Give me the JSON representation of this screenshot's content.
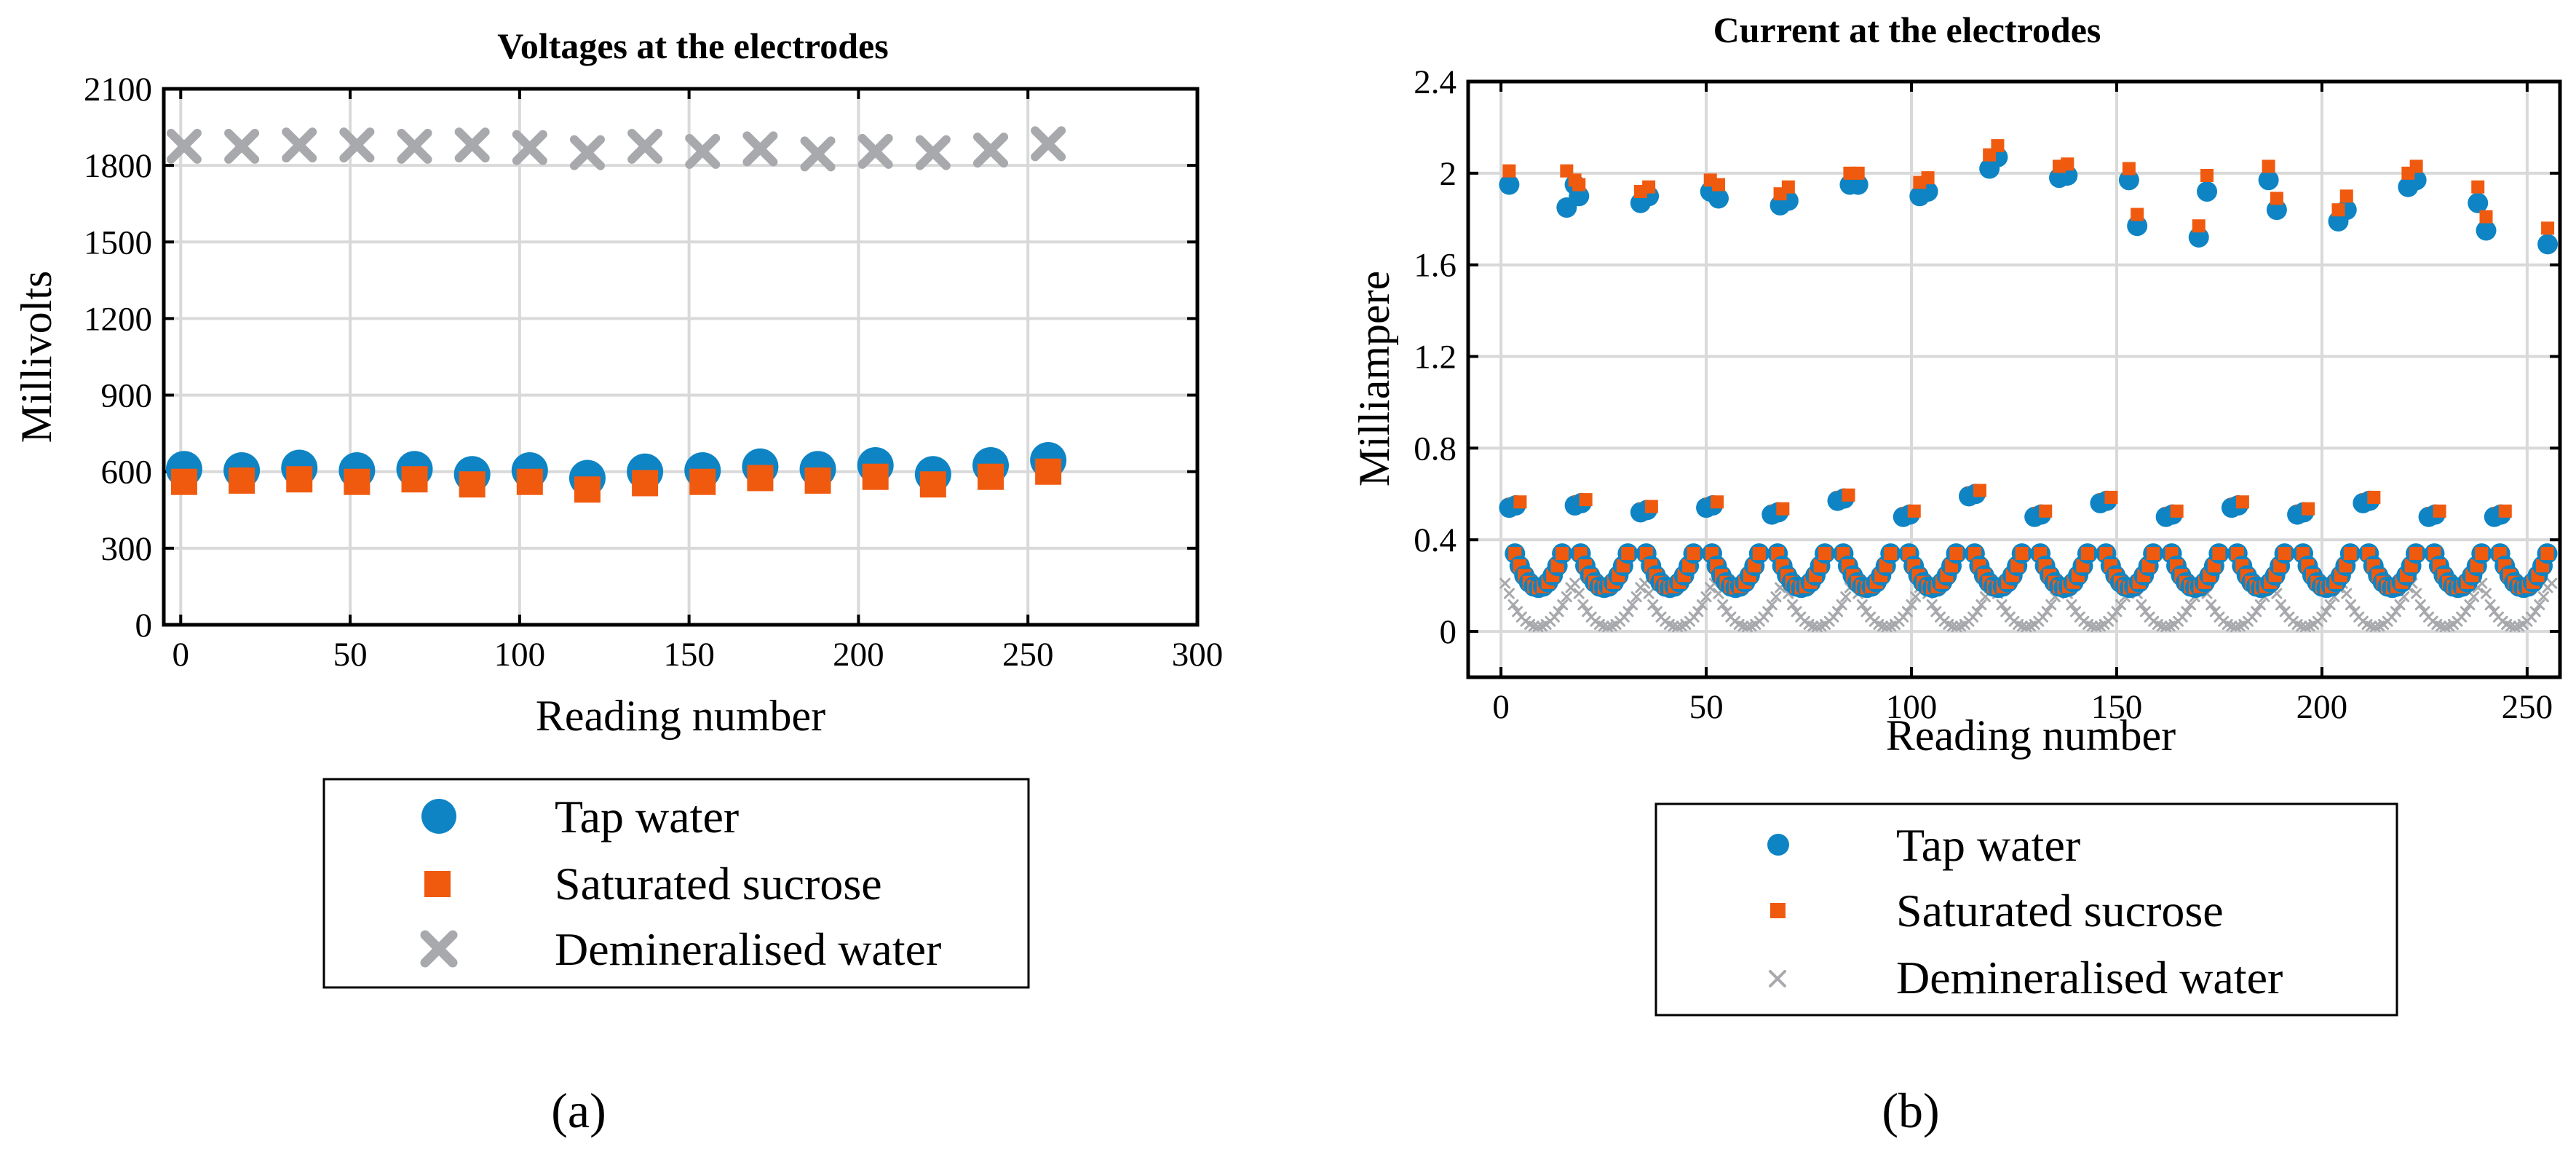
{
  "colors": {
    "tap": "#0E84C4",
    "sucrose": "#F05A0F",
    "demin": "#A7A9AC"
  },
  "chart_data": [
    {
      "type": "scatter",
      "title": "Voltages at the electrodes",
      "xlabel": "Reading number",
      "ylabel": "Millivolts",
      "xlim": [
        -5,
        300
      ],
      "ylim": [
        0,
        2100
      ],
      "xticks": [
        0,
        50,
        100,
        150,
        200,
        250,
        300
      ],
      "yticks": [
        0,
        300,
        600,
        900,
        1200,
        1500,
        1800,
        2100
      ],
      "grid": true,
      "caption": "(a)",
      "legend": [
        "Tap water",
        "Saturated sucrose",
        "Demineralised water"
      ],
      "x": [
        1,
        18,
        35,
        52,
        69,
        86,
        103,
        120,
        137,
        154,
        171,
        188,
        205,
        222,
        239,
        256
      ],
      "series": [
        {
          "name": "Tap water",
          "values": [
            610,
            605,
            615,
            605,
            610,
            590,
            605,
            575,
            600,
            605,
            620,
            610,
            625,
            590,
            625,
            645
          ]
        },
        {
          "name": "Saturated sucrose",
          "values": [
            560,
            565,
            570,
            560,
            570,
            550,
            560,
            530,
            555,
            560,
            575,
            565,
            580,
            550,
            580,
            600
          ]
        },
        {
          "name": "Demineralised water",
          "values": [
            1875,
            1875,
            1880,
            1880,
            1875,
            1880,
            1870,
            1850,
            1875,
            1855,
            1865,
            1845,
            1855,
            1850,
            1860,
            1885
          ]
        }
      ]
    },
    {
      "type": "scatter",
      "title": "Current at the electrodes",
      "xlabel": "Reading number",
      "ylabel": "Milliampere",
      "xlim": [
        -8,
        258
      ],
      "ylim": [
        -0.2,
        2.4
      ],
      "xticks": [
        0,
        50,
        100,
        150,
        200,
        250
      ],
      "yticks": [
        0,
        0.4,
        0.8,
        1.2,
        1.6,
        2,
        2.4
      ],
      "ytick_labels": [
        "0",
        "0.4",
        "0.8",
        "1.2",
        "1.6",
        "2",
        "2.4"
      ],
      "grid": true,
      "caption": "(b)",
      "legend": [
        "Tap water",
        "Saturated sucrose",
        "Demineralised water"
      ],
      "pattern_note": "Each group of 16 readings: first two readings high (~2 mA and ~0.55 mA), then a U-shaped dip to ~0.18 mA; demineralised water stays near 0.02-0.2 mA",
      "series": [
        {
          "name": "Tap water",
          "x": [
            2,
            16,
            18,
            19,
            34,
            36,
            51,
            53,
            68,
            70,
            85,
            87,
            102,
            104,
            119,
            121,
            136,
            138,
            153,
            155,
            170,
            172,
            187,
            189,
            204,
            206,
            221,
            223,
            238,
            240,
            255
          ],
          "values": [
            1.95,
            1.85,
            1.95,
            1.9,
            1.87,
            1.9,
            1.92,
            1.89,
            1.86,
            1.88,
            1.95,
            1.95,
            1.9,
            1.92,
            2.02,
            2.07,
            1.98,
            1.99,
            1.97,
            1.77,
            1.72,
            1.92,
            1.97,
            1.84,
            1.79,
            1.84,
            1.94,
            1.97,
            1.87,
            1.75,
            1.69
          ]
        },
        {
          "name": "Saturated sucrose",
          "x": [
            2,
            16,
            18,
            19,
            34,
            36,
            51,
            53,
            68,
            70,
            85,
            87,
            102,
            104,
            119,
            121,
            136,
            138,
            153,
            155,
            170,
            172,
            187,
            189,
            204,
            206,
            221,
            223,
            238,
            240,
            255
          ],
          "values": [
            2.01,
            2.01,
            1.97,
            1.95,
            1.92,
            1.94,
            1.97,
            1.95,
            1.91,
            1.94,
            2.0,
            2.0,
            1.96,
            1.98,
            2.08,
            2.12,
            2.03,
            2.04,
            2.02,
            1.82,
            1.77,
            1.99,
            2.03,
            1.89,
            1.84,
            1.9,
            2.0,
            2.03,
            1.94,
            1.81,
            1.76
          ]
        },
        {
          "name": "Demineralised water",
          "values_range": [
            0.02,
            0.21
          ]
        }
      ],
      "low_band": {
        "x_start": 2,
        "x_end": 256,
        "period": 17,
        "tap_second": [
          0.54,
          0.55,
          0.52,
          0.54,
          0.51,
          0.57,
          0.5,
          0.59,
          0.5,
          0.56,
          0.5,
          0.54,
          0.51,
          0.56,
          0.5,
          0.5
        ]
      }
    }
  ]
}
